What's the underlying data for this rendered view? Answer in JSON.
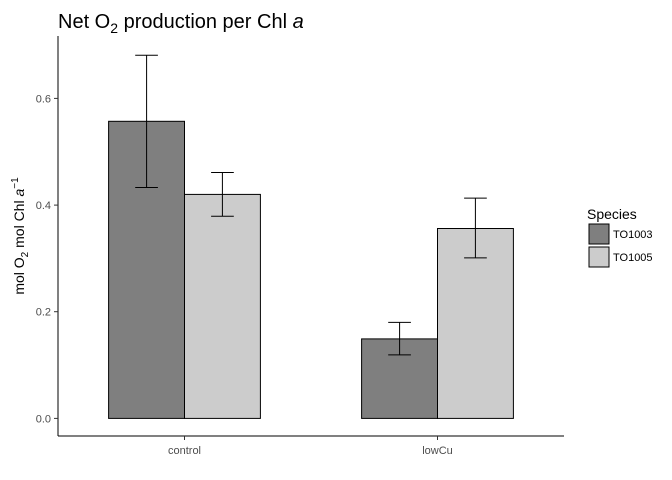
{
  "chart_data": {
    "type": "bar",
    "title": {
      "pre": "Net  O",
      "sub": "2",
      "mid": " production per Chl ",
      "ital": "a"
    },
    "ylabel": {
      "pre": "mol  O",
      "sub": "2",
      "mid": " mol Chl ",
      "ital": "a",
      "sup": "−1"
    },
    "xlabel": "",
    "categories": [
      "control",
      "lowCu"
    ],
    "series": [
      {
        "name": "TO1003",
        "color": "#7f7f7f",
        "values": [
          0.557,
          0.149
        ],
        "err_low": [
          0.433,
          0.119
        ],
        "err_high": [
          0.681,
          0.18
        ]
      },
      {
        "name": "TO1005",
        "color": "#cccccc",
        "values": [
          0.42,
          0.356
        ],
        "err_low": [
          0.379,
          0.301
        ],
        "err_high": [
          0.461,
          0.413
        ]
      }
    ],
    "ylim": [
      -0.033,
      0.717
    ],
    "yticks": [
      0.0,
      0.2,
      0.4,
      0.6
    ],
    "ytick_labels": [
      "0.0",
      "0.2",
      "0.4",
      "0.6"
    ],
    "legend": {
      "title": "Species",
      "placement": "right"
    },
    "grid": false
  }
}
